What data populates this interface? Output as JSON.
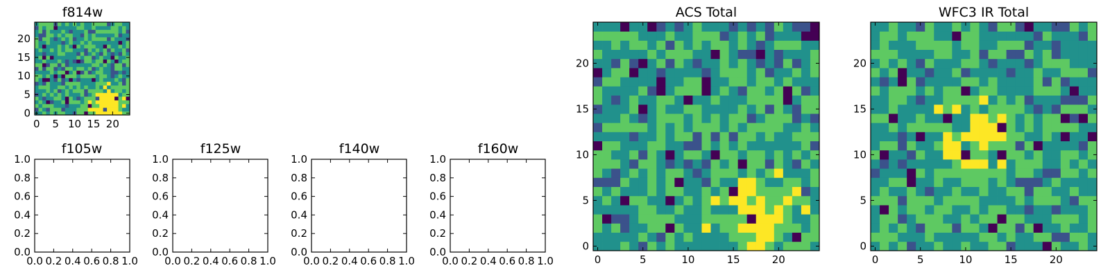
{
  "colormap": [
    "#440154",
    "#3b528b",
    "#21918c",
    "#5ec962",
    "#fde725"
  ],
  "chart_data": [
    {
      "type": "heatmap",
      "title": "f814w",
      "grid_size": 25,
      "xticks": [
        0,
        5,
        10,
        15,
        20
      ],
      "yticks": [
        0,
        5,
        10,
        15,
        20
      ],
      "bright_region": {
        "x": 19,
        "y": 2,
        "strength": 0.55
      },
      "seed": 814,
      "empty": false
    },
    {
      "type": "heatmap",
      "title": "f105w",
      "empty": true,
      "xticks": [
        "0.0",
        "0.2",
        "0.4",
        "0.6",
        "0.8",
        "1.0"
      ],
      "yticks": [
        "0.0",
        "0.2",
        "0.4",
        "0.6",
        "0.8",
        "1.0"
      ]
    },
    {
      "type": "heatmap",
      "title": "f125w",
      "empty": true,
      "xticks": [
        "0.0",
        "0.2",
        "0.4",
        "0.6",
        "0.8",
        "1.0"
      ],
      "yticks": [
        "0.0",
        "0.2",
        "0.4",
        "0.6",
        "0.8",
        "1.0"
      ]
    },
    {
      "type": "heatmap",
      "title": "f140w",
      "empty": true,
      "xticks": [
        "0.0",
        "0.2",
        "0.4",
        "0.6",
        "0.8",
        "1.0"
      ],
      "yticks": [
        "0.0",
        "0.2",
        "0.4",
        "0.6",
        "0.8",
        "1.0"
      ]
    },
    {
      "type": "heatmap",
      "title": "f160w",
      "empty": true,
      "xticks": [
        "0.0",
        "0.2",
        "0.4",
        "0.6",
        "0.8",
        "1.0"
      ],
      "yticks": [
        "0.0",
        "0.2",
        "0.4",
        "0.6",
        "0.8",
        "1.0"
      ]
    },
    {
      "type": "heatmap",
      "title": "ACS Total",
      "grid_size": 25,
      "xticks": [
        0,
        5,
        10,
        15,
        20
      ],
      "yticks": [
        0,
        5,
        10,
        15,
        20
      ],
      "bright_region": {
        "x": 18,
        "y": 3,
        "strength": 0.35
      },
      "seed": 27,
      "empty": false
    },
    {
      "type": "heatmap",
      "title": "WFC3 IR Total",
      "grid_size": 25,
      "xticks": [
        0,
        5,
        10,
        15,
        20
      ],
      "yticks": [
        0,
        5,
        10,
        15,
        20
      ],
      "bright_region": {
        "x": 11,
        "y": 12,
        "strength": 0.25
      },
      "seed": 3,
      "empty": false
    }
  ]
}
